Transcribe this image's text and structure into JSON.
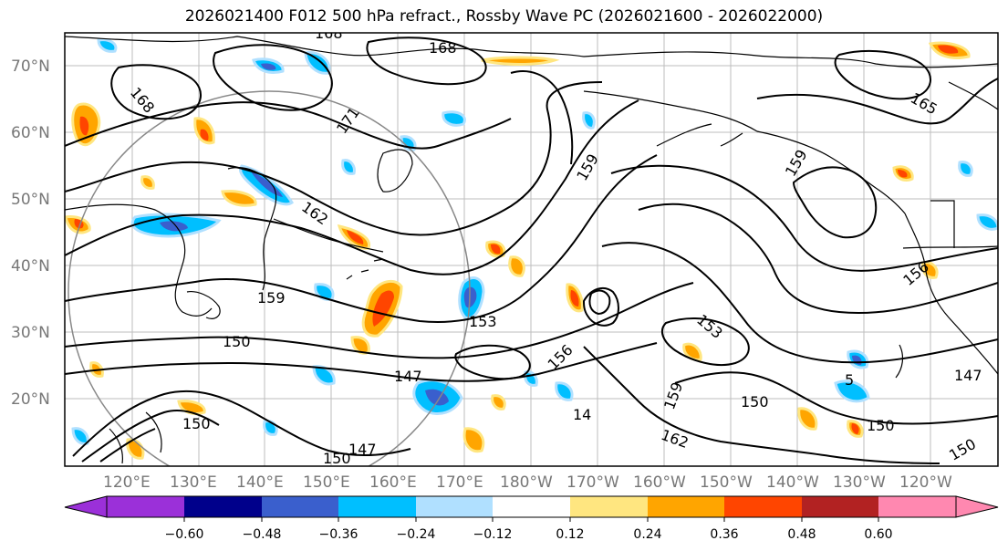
{
  "title": "2026021400 F012 500 hPa refract., Rossby Wave PC (2026021600 - 2026022000)",
  "map": {
    "lat_labels": [
      "70°N",
      "60°N",
      "50°N",
      "40°N",
      "30°N",
      "20°N"
    ],
    "lon_labels": [
      "120°E",
      "130°E",
      "140°E",
      "150°E",
      "160°E",
      "170°E",
      "180°W",
      "170°W",
      "160°W",
      "150°W",
      "140°W",
      "130°W",
      "120°W"
    ],
    "contour_labels": [
      "168",
      "168",
      "168",
      "171",
      "162",
      "159",
      "159",
      "159",
      "153",
      "153",
      "156",
      "150",
      "150",
      "150",
      "150",
      "147",
      "147",
      "147",
      "156",
      "165",
      "162",
      "159",
      "150",
      "150",
      "14",
      "5"
    ]
  },
  "colorbar": {
    "ticks": [
      "−0.60",
      "−0.48",
      "−0.36",
      "−0.24",
      "−0.12",
      "0.12",
      "0.24",
      "0.36",
      "0.48",
      "0.60"
    ],
    "colors": [
      "#9b30d9",
      "#00008b",
      "#3a5fcd",
      "#00bfff",
      "#b0e0ff",
      "#ffffff",
      "#ffe680",
      "#ffa500",
      "#ff4500",
      "#b22222",
      "#ff88b0"
    ]
  }
}
